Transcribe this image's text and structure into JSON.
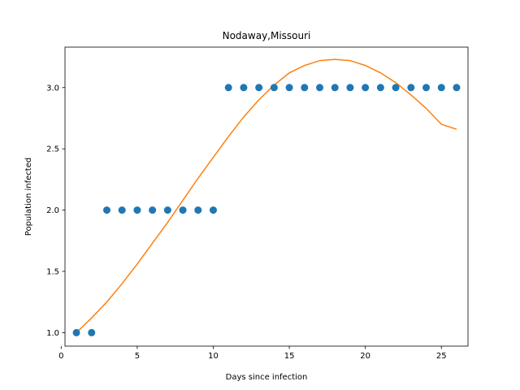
{
  "chart_data": {
    "type": "scatter",
    "title": "Nodaway,Missouri",
    "xlabel": "Days since infection",
    "ylabel": "Population infected",
    "xlim": [
      0.25,
      26.75
    ],
    "ylim": [
      0.89,
      3.33
    ],
    "xticks": [
      0,
      5,
      10,
      15,
      20,
      25
    ],
    "yticks": [
      1.0,
      1.5,
      2.0,
      2.5,
      3.0
    ],
    "grid": false,
    "series": [
      {
        "kind": "scatter",
        "color": "#1f77b4",
        "x": [
          1,
          2,
          3,
          4,
          5,
          6,
          7,
          8,
          9,
          10,
          11,
          12,
          13,
          14,
          15,
          16,
          17,
          18,
          19,
          20,
          21,
          22,
          23,
          24,
          25,
          26
        ],
        "y": [
          1,
          1,
          2,
          2,
          2,
          2,
          2,
          2,
          2,
          2,
          3,
          3,
          3,
          3,
          3,
          3,
          3,
          3,
          3,
          3,
          3,
          3,
          3,
          3,
          3,
          3
        ]
      },
      {
        "kind": "line",
        "color": "#ff7f0e",
        "x": [
          1,
          2,
          3,
          4,
          5,
          6,
          7,
          8,
          9,
          10,
          11,
          12,
          13,
          14,
          15,
          16,
          17,
          18,
          19,
          20,
          21,
          22,
          23,
          24,
          25,
          26
        ],
        "y": [
          1.0,
          1.12,
          1.25,
          1.4,
          1.56,
          1.73,
          1.9,
          2.08,
          2.26,
          2.43,
          2.6,
          2.76,
          2.9,
          3.02,
          3.12,
          3.18,
          3.22,
          3.23,
          3.22,
          3.18,
          3.12,
          3.04,
          2.94,
          2.83,
          2.7,
          2.66
        ]
      }
    ]
  }
}
